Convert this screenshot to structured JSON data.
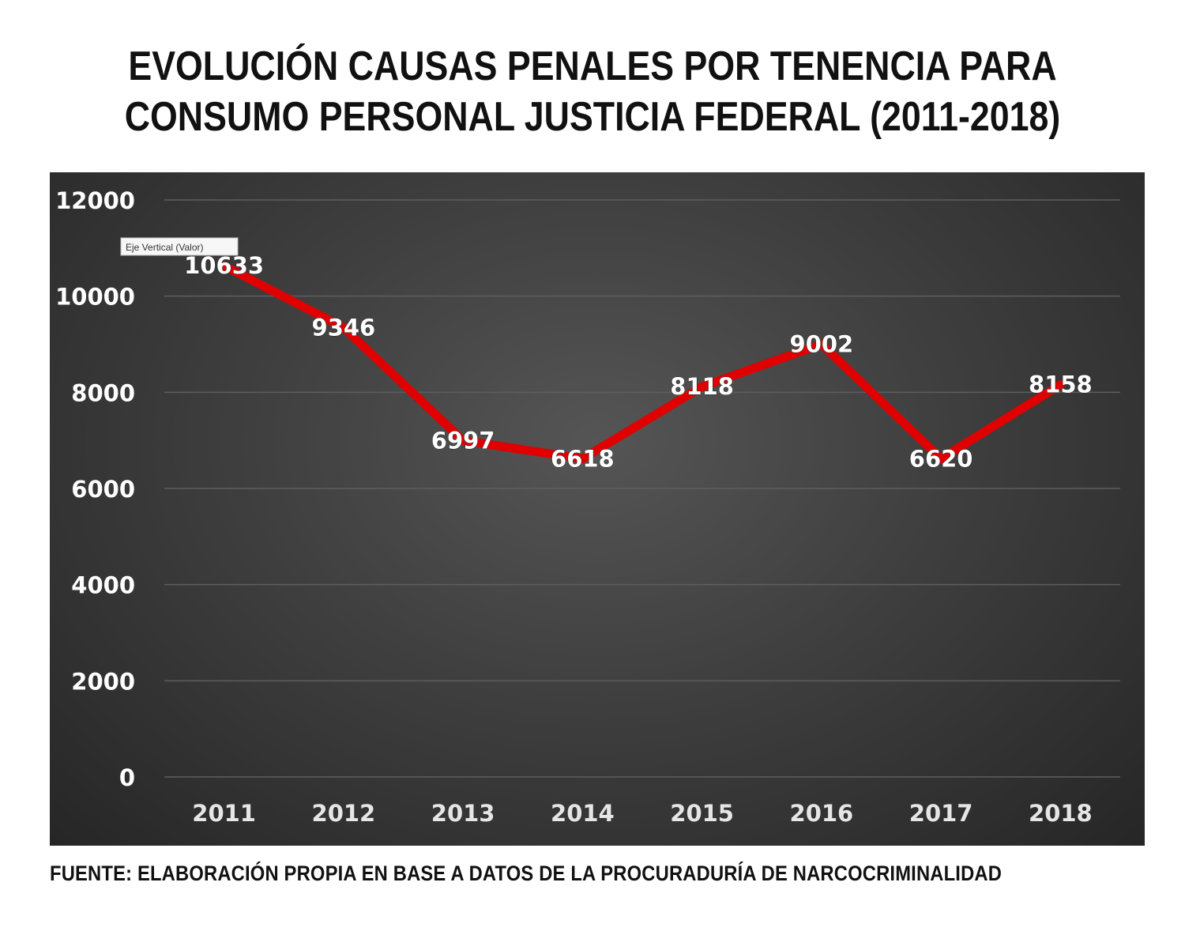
{
  "title": {
    "line1": "EVOLUCIÓN CAUSAS PENALES POR TENENCIA PARA",
    "line2": "CONSUMO PERSONAL JUSTICIA FEDERAL (2011-2018)"
  },
  "tooltip": "Eje Vertical (Valor)",
  "source": "FUENTE: ELABORACIÓN PROPIA EN BASE A DATOS DE LA PROCURADURÍA DE NARCOCRIMINALIDAD",
  "colors": {
    "line": "#e00000",
    "background": "#3a3a3a",
    "text": "#ffffff",
    "grid": "#5e5e5e"
  },
  "chart_data": {
    "type": "line",
    "title": "EVOLUCIÓN CAUSAS PENALES POR TENENCIA PARA CONSUMO PERSONAL JUSTICIA FEDERAL (2011-2018)",
    "xlabel": "",
    "ylabel": "",
    "categories": [
      "2011",
      "2012",
      "2013",
      "2014",
      "2015",
      "2016",
      "2017",
      "2018"
    ],
    "series": [
      {
        "values": [
          10633,
          9346,
          6997,
          6618,
          8118,
          9002,
          6620,
          8158
        ]
      }
    ],
    "data_labels": [
      "10633",
      "9346",
      "6997",
      "6618",
      "8118",
      "9002",
      "6620",
      "8158"
    ],
    "ylim": [
      0,
      12000
    ],
    "yticks": [
      0,
      2000,
      4000,
      6000,
      8000,
      10000,
      12000
    ],
    "ytick_labels": [
      "0",
      "2000",
      "4000",
      "6000",
      "8000",
      "10000",
      "12000"
    ],
    "grid": true,
    "legend": "none"
  }
}
